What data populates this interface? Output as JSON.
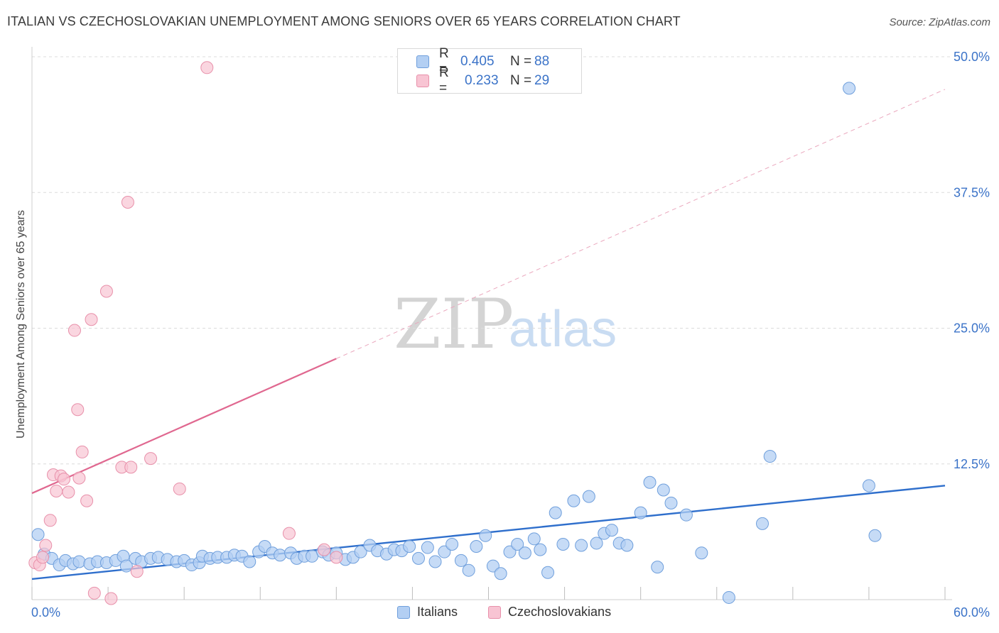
{
  "header": {
    "title": "ITALIAN VS CZECHOSLOVAKIAN UNEMPLOYMENT AMONG SENIORS OVER 65 YEARS CORRELATION CHART",
    "source": "Source: ZipAtlas.com"
  },
  "legend": {
    "italians": {
      "r_label": "R =",
      "r_value": "0.405",
      "n_label": "N =",
      "n_value": "88"
    },
    "czechoslovakians": {
      "r_label": "R =",
      "r_value": "0.233",
      "n_label": "N =",
      "n_value": "29"
    }
  },
  "colors": {
    "italians_fill": "#b3cff3",
    "italians_stroke": "#6f9fdc",
    "italians_line": "#2f6fcc",
    "czech_fill": "#f8c4d3",
    "czech_stroke": "#e890aa",
    "czech_line": "#e06890",
    "axis_label": "#3b73c8",
    "grid": "#dcdcdc"
  },
  "watermark": {
    "bold": "ZIP",
    "light": "atlas"
  },
  "chart_data": {
    "type": "scatter",
    "title": "ITALIAN VS CZECHOSLOVAKIAN UNEMPLOYMENT AMONG SENIORS OVER 65 YEARS CORRELATION CHART",
    "xlabel": "",
    "ylabel": "Unemployment Among Seniors over 65 years",
    "xlim": [
      0,
      60
    ],
    "ylim": [
      0,
      50
    ],
    "x_tick_labels": [
      "0.0%",
      "60.0%"
    ],
    "y_ticks": [
      12.5,
      25.0,
      37.5,
      50.0
    ],
    "y_tick_labels": [
      "12.5%",
      "25.0%",
      "37.5%",
      "50.0%"
    ],
    "grid": true,
    "legend_position": "top-center",
    "series": [
      {
        "name": "Italians",
        "r": 0.405,
        "n": 88,
        "trend": {
          "x": [
            0,
            60
          ],
          "y": [
            1.9,
            10.5
          ],
          "style": "solid"
        },
        "points": [
          [
            0.4,
            6.0
          ],
          [
            0.8,
            4.2
          ],
          [
            1.3,
            3.8
          ],
          [
            1.8,
            3.2
          ],
          [
            2.2,
            3.6
          ],
          [
            2.7,
            3.3
          ],
          [
            3.1,
            3.5
          ],
          [
            3.8,
            3.3
          ],
          [
            4.3,
            3.5
          ],
          [
            4.9,
            3.4
          ],
          [
            5.5,
            3.6
          ],
          [
            6.0,
            4.0
          ],
          [
            6.2,
            3.1
          ],
          [
            6.8,
            3.8
          ],
          [
            7.2,
            3.5
          ],
          [
            7.8,
            3.8
          ],
          [
            8.3,
            3.9
          ],
          [
            8.9,
            3.7
          ],
          [
            9.5,
            3.5
          ],
          [
            10.0,
            3.6
          ],
          [
            10.5,
            3.2
          ],
          [
            11.0,
            3.4
          ],
          [
            11.2,
            4.0
          ],
          [
            11.7,
            3.8
          ],
          [
            12.2,
            3.9
          ],
          [
            12.8,
            3.9
          ],
          [
            13.3,
            4.1
          ],
          [
            13.8,
            4.0
          ],
          [
            14.3,
            3.5
          ],
          [
            14.9,
            4.4
          ],
          [
            15.3,
            4.9
          ],
          [
            15.8,
            4.3
          ],
          [
            16.3,
            4.1
          ],
          [
            17.0,
            4.3
          ],
          [
            17.4,
            3.8
          ],
          [
            17.9,
            4.0
          ],
          [
            18.4,
            4.0
          ],
          [
            19.1,
            4.4
          ],
          [
            19.5,
            4.1
          ],
          [
            20.0,
            4.3
          ],
          [
            20.6,
            3.7
          ],
          [
            21.1,
            3.9
          ],
          [
            21.6,
            4.4
          ],
          [
            22.2,
            5.0
          ],
          [
            22.7,
            4.5
          ],
          [
            23.3,
            4.2
          ],
          [
            23.8,
            4.6
          ],
          [
            24.3,
            4.5
          ],
          [
            24.8,
            4.9
          ],
          [
            25.4,
            3.8
          ],
          [
            26.0,
            4.8
          ],
          [
            26.5,
            3.5
          ],
          [
            27.1,
            4.4
          ],
          [
            27.6,
            5.1
          ],
          [
            28.2,
            3.6
          ],
          [
            28.7,
            2.7
          ],
          [
            29.2,
            4.9
          ],
          [
            29.8,
            5.9
          ],
          [
            30.3,
            3.1
          ],
          [
            30.8,
            2.4
          ],
          [
            31.4,
            4.4
          ],
          [
            31.9,
            5.1
          ],
          [
            32.4,
            4.3
          ],
          [
            33.0,
            5.6
          ],
          [
            33.4,
            4.6
          ],
          [
            33.9,
            2.5
          ],
          [
            34.4,
            8.0
          ],
          [
            34.9,
            5.1
          ],
          [
            35.6,
            9.1
          ],
          [
            36.1,
            5.0
          ],
          [
            36.6,
            9.5
          ],
          [
            37.1,
            5.2
          ],
          [
            37.6,
            6.1
          ],
          [
            38.1,
            6.4
          ],
          [
            38.6,
            5.2
          ],
          [
            39.1,
            5.0
          ],
          [
            40.0,
            8.0
          ],
          [
            40.6,
            10.8
          ],
          [
            41.1,
            3.0
          ],
          [
            41.5,
            10.1
          ],
          [
            42.0,
            8.9
          ],
          [
            43.0,
            7.8
          ],
          [
            44.0,
            4.3
          ],
          [
            45.8,
            0.2
          ],
          [
            48.0,
            7.0
          ],
          [
            48.5,
            13.2
          ],
          [
            53.7,
            47.1
          ],
          [
            55.0,
            10.5
          ],
          [
            55.4,
            5.9
          ]
        ]
      },
      {
        "name": "Czechoslovakians",
        "r": 0.233,
        "n": 29,
        "trend": {
          "x": [
            0,
            20
          ],
          "y": [
            9.8,
            22.2
          ],
          "style": "solid"
        },
        "trend_extension": {
          "x": [
            20,
            60
          ],
          "y": [
            22.2,
            47.0
          ],
          "style": "dashed"
        },
        "points": [
          [
            0.2,
            3.4
          ],
          [
            0.5,
            3.2
          ],
          [
            0.7,
            3.9
          ],
          [
            0.9,
            5.0
          ],
          [
            1.2,
            7.3
          ],
          [
            1.4,
            11.5
          ],
          [
            1.6,
            10.0
          ],
          [
            1.9,
            11.4
          ],
          [
            2.1,
            11.1
          ],
          [
            2.4,
            9.9
          ],
          [
            2.8,
            24.8
          ],
          [
            3.0,
            17.5
          ],
          [
            3.1,
            11.2
          ],
          [
            3.3,
            13.6
          ],
          [
            3.6,
            9.1
          ],
          [
            3.9,
            25.8
          ],
          [
            4.1,
            0.6
          ],
          [
            4.9,
            28.4
          ],
          [
            5.2,
            0.1
          ],
          [
            5.9,
            12.2
          ],
          [
            6.3,
            36.6
          ],
          [
            6.5,
            12.2
          ],
          [
            6.9,
            2.6
          ],
          [
            7.8,
            13.0
          ],
          [
            9.7,
            10.2
          ],
          [
            11.5,
            49.0
          ],
          [
            16.9,
            6.1
          ],
          [
            19.2,
            4.6
          ],
          [
            20.0,
            3.9
          ]
        ]
      }
    ]
  },
  "bottom_legend": {
    "italians": "Italians",
    "czechoslovakians": "Czechoslovakians"
  }
}
